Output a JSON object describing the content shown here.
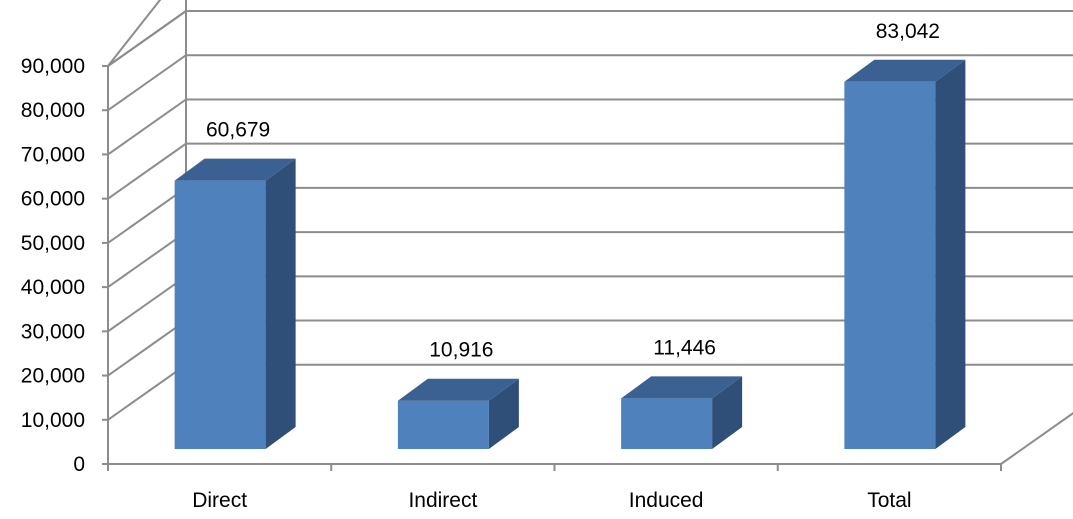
{
  "chart_data": {
    "type": "bar",
    "style": "3d-column",
    "categories": [
      "Direct",
      "Indirect",
      "Induced",
      "Total"
    ],
    "values": [
      60679,
      10916,
      11446,
      83042
    ],
    "data_labels": [
      "60,679",
      "10,916",
      "11,446",
      "83,042"
    ],
    "title": "",
    "xlabel": "",
    "ylabel": "",
    "ylim": [
      0,
      90000
    ],
    "ytick_step": 10000,
    "ytick_labels": [
      "0",
      "10,000",
      "20,000",
      "30,000",
      "40,000",
      "50,000",
      "60,000",
      "70,000",
      "80,000",
      "90,000"
    ],
    "grid": true,
    "legend": "none",
    "colors": {
      "bar_front": "#4f81bd",
      "bar_side": "#2f4f78",
      "bar_top": "#3b6192",
      "grid": "#8c8c8c"
    }
  }
}
